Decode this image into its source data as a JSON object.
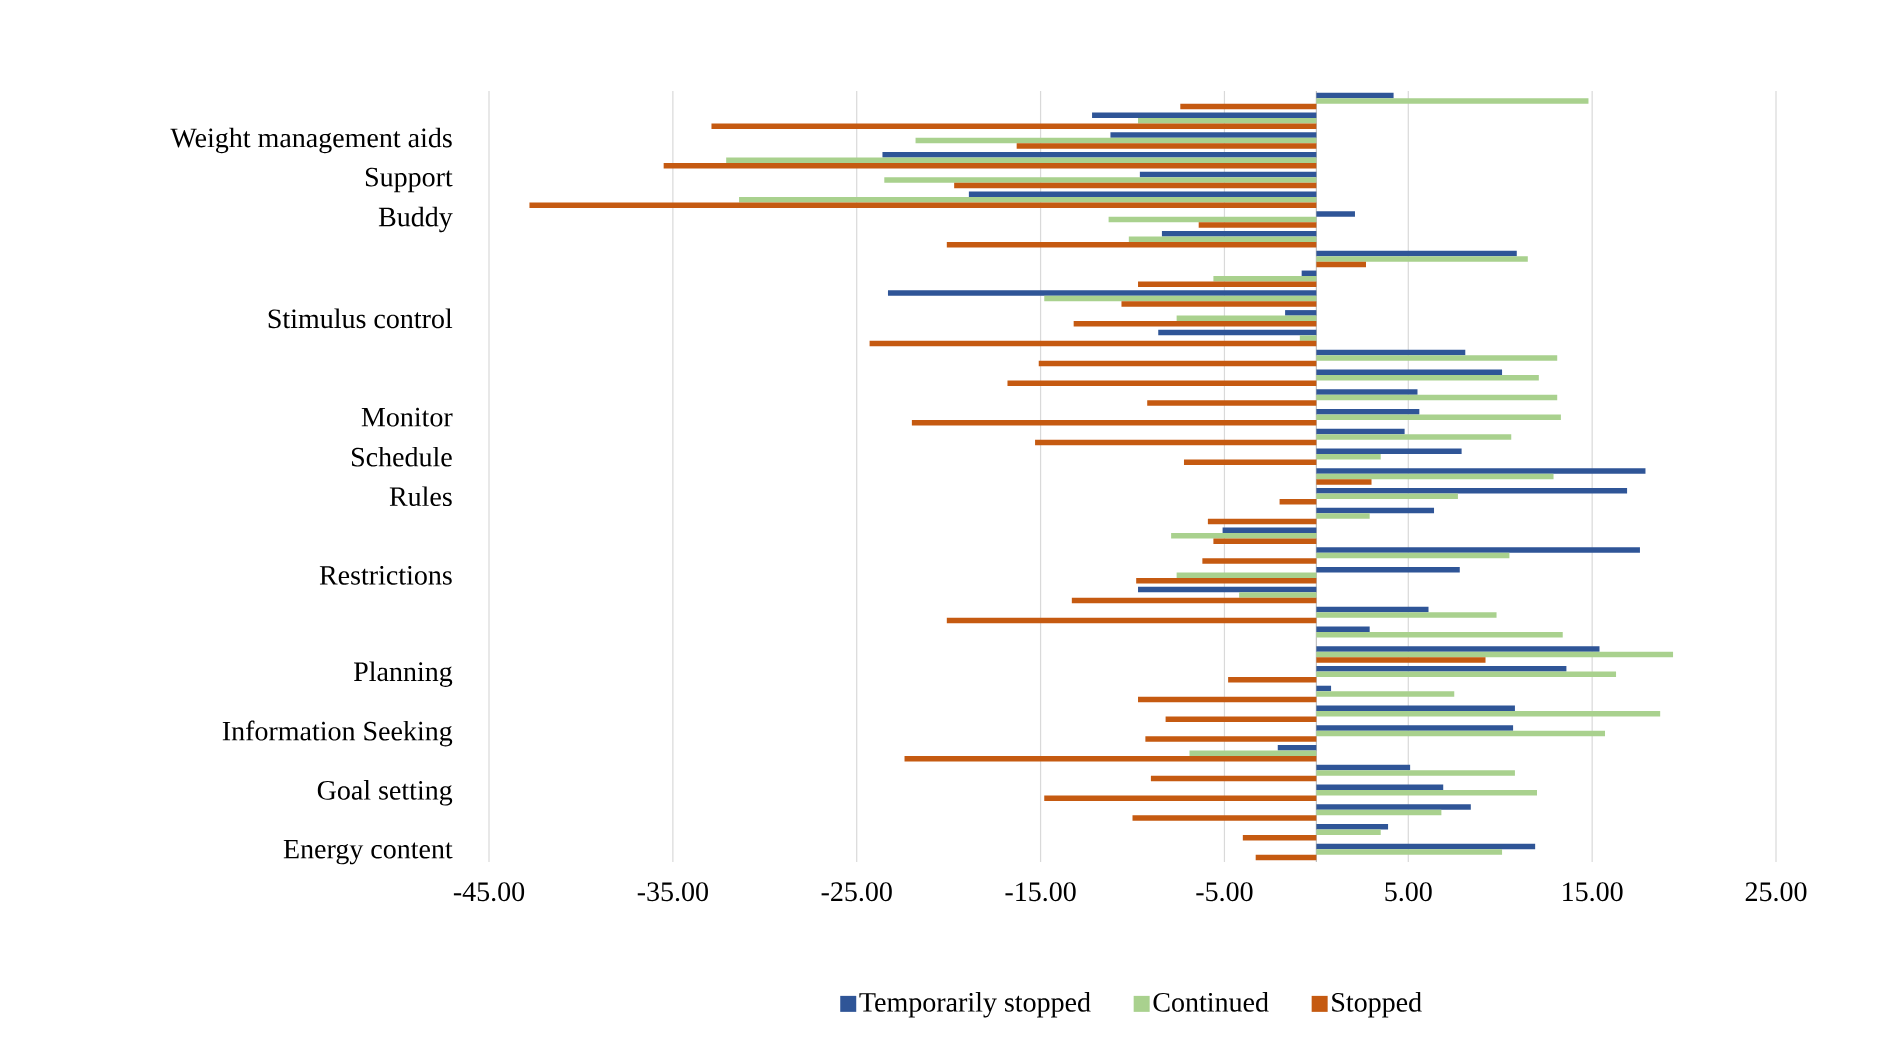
{
  "chart_data": {
    "type": "bar",
    "orientation": "horizontal",
    "categories": [
      null,
      null,
      "Weight management aids",
      null,
      "Support",
      null,
      "Buddy",
      null,
      null,
      null,
      null,
      "Stimulus control",
      null,
      null,
      null,
      null,
      "Monitor",
      null,
      "Schedule",
      null,
      "Rules",
      null,
      null,
      null,
      "Restrictions",
      null,
      null,
      null,
      null,
      "Planning",
      null,
      null,
      "Information Seeking",
      null,
      null,
      "Goal setting",
      null,
      null,
      "Energy content"
    ],
    "series": [
      {
        "name": "Temporarily stopped",
        "color": "#2f5597",
        "values": [
          4.2,
          -12.2,
          -11.2,
          -23.6,
          -9.6,
          -18.9,
          2.1,
          -8.4,
          10.9,
          -0.8,
          -23.3,
          -1.7,
          -8.6,
          8.1,
          10.1,
          5.5,
          5.6,
          4.8,
          7.9,
          17.9,
          16.9,
          6.4,
          -5.1,
          17.6,
          7.8,
          -9.7,
          6.1,
          2.9,
          15.4,
          13.6,
          0.8,
          10.8,
          10.7,
          -2.1,
          5.1,
          6.9,
          8.4,
          3.9,
          11.9
        ]
      },
      {
        "name": "Continued",
        "color": "#a9d18e",
        "values": [
          14.8,
          -9.7,
          -21.8,
          -32.1,
          -23.5,
          -31.4,
          -11.3,
          -10.2,
          11.5,
          -5.6,
          -14.8,
          -7.6,
          -0.9,
          13.1,
          12.1,
          13.1,
          13.3,
          10.6,
          3.5,
          12.9,
          7.7,
          2.9,
          -7.9,
          10.5,
          -7.6,
          -4.2,
          9.8,
          13.4,
          19.4,
          16.3,
          7.5,
          18.7,
          15.7,
          -6.9,
          10.8,
          12.0,
          6.8,
          3.5,
          10.1
        ]
      },
      {
        "name": "Stopped",
        "color": "#c55a11",
        "values": [
          -7.4,
          -32.9,
          -16.3,
          -35.5,
          -19.7,
          -42.8,
          -6.4,
          -20.1,
          2.7,
          -9.7,
          -10.6,
          -13.2,
          -24.3,
          -15.1,
          -16.8,
          -9.2,
          -22.0,
          -15.3,
          -7.2,
          3.0,
          -2.0,
          -5.9,
          -5.6,
          -6.2,
          -9.8,
          -13.3,
          -20.1,
          null,
          9.2,
          -4.8,
          -9.7,
          -8.2,
          -9.3,
          -22.4,
          -9.0,
          -14.8,
          -10.0,
          -4.0,
          -3.3
        ]
      }
    ],
    "xlim": [
      -45,
      25
    ],
    "xticks": [
      {
        "value": -45,
        "label": "-45.00"
      },
      {
        "value": -35,
        "label": "-35.00"
      },
      {
        "value": -25,
        "label": "-25.00"
      },
      {
        "value": -15,
        "label": "-15.00"
      },
      {
        "value": -5,
        "label": "-5.00"
      },
      {
        "value": 5,
        "label": "5.00"
      },
      {
        "value": 15,
        "label": "15.00"
      },
      {
        "value": 25,
        "label": "25.00"
      }
    ],
    "grid": "x",
    "legend": "bottom"
  }
}
